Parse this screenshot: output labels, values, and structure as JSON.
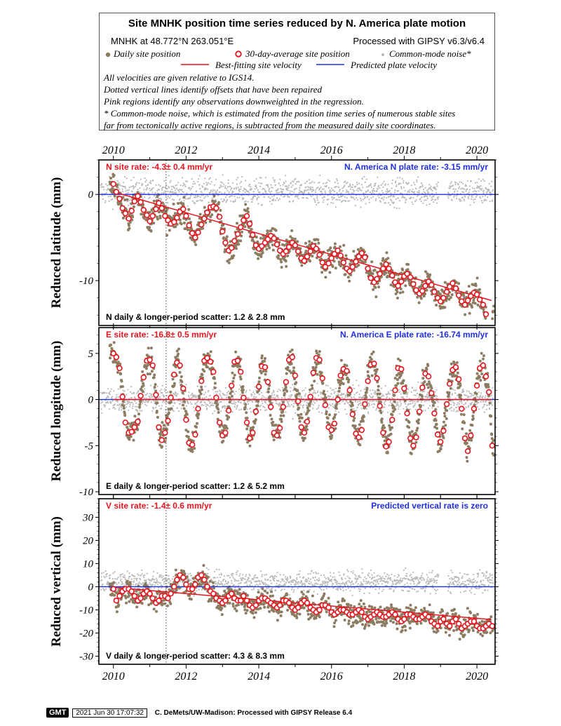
{
  "legend": {
    "title": "Site MNHK position time series reduced by N. America plate motion",
    "site_line": "MNHK at 48.772°N 263.051°E",
    "processed_line": "Processed with GIPSY v6.3/v6.4",
    "daily_label": "Daily site position",
    "avg_label": "30-day-average site position",
    "cm_label": "Common-mode noise*",
    "best_fit_label": "Best-fitting site velocity",
    "pred_label": "Predicted plate velocity",
    "notes": [
      "All velocities are given relative to IGS14.",
      "Dotted vertical lines identify offsets that have been repaired",
      "Pink regions identify any observations downweighted in the regression.",
      "* Common-mode noise, which is estimated from the position time series of numerous stable sites",
      "far from tectonically active regions, is subtracted from the measured daily site coordinates."
    ]
  },
  "footer": {
    "logo": "GMT",
    "timestamp": "2021 Jun 30 17:07:32",
    "credit": "C. DeMets/UW-Madison: Processed with GIPSY Release 6.4"
  },
  "colors": {
    "daily": "#8c7c62",
    "common_mode": "#b9b9b9",
    "average_ring": "#e8141e",
    "best_fit": "#e8141e",
    "predicted": "#1f2fe6",
    "site_rate_text": "#e8141e",
    "plate_rate_text": "#1f2fe6"
  },
  "chart_data": [
    {
      "type": "scatter",
      "ylabel": "Reduced latitude (mm)",
      "site_rate": "N site rate:  -4.3± 0.4 mm/yr",
      "plate_rate": "N. America N plate rate: -3.15 mm/yr",
      "scatter": "N daily & longer-period scatter:   1.2 &   2.8 mm",
      "xlim": [
        2009.6,
        2020.5
      ],
      "ylim": [
        -15.2,
        4.0
      ],
      "xticks": [
        "2010",
        "2012",
        "2014",
        "2016",
        "2018",
        "2020"
      ],
      "yticks": [
        0,
        -10
      ],
      "offset_year": 2011.45,
      "best_fit": {
        "x": [
          2010.0,
          2020.4
        ],
        "y": [
          0.3,
          -12.3
        ]
      },
      "predicted_y": 0,
      "avg_x": [
        2010.0,
        2010.08,
        2010.17,
        2010.25,
        2010.33,
        2010.42,
        2010.5,
        2010.58,
        2010.67,
        2010.75,
        2010.83,
        2010.92,
        2011.0,
        2011.08,
        2011.17,
        2011.25,
        2011.33,
        2011.42,
        2011.5,
        2011.58,
        2011.67,
        2011.75,
        2011.83,
        2011.92,
        2012.0,
        2012.08,
        2012.17,
        2012.25,
        2012.33,
        2012.42,
        2012.5,
        2012.58,
        2012.67,
        2012.75,
        2012.83,
        2012.92,
        2013.0,
        2013.08,
        2013.17,
        2013.25,
        2013.33,
        2013.42,
        2013.5,
        2013.58,
        2013.67,
        2013.75,
        2013.83,
        2013.92,
        2014.0,
        2014.08,
        2014.17,
        2014.25,
        2014.33,
        2014.42,
        2014.5,
        2014.58,
        2014.67,
        2014.75,
        2014.83,
        2014.92,
        2015.0,
        2015.08,
        2015.17,
        2015.25,
        2015.33,
        2015.42,
        2015.5,
        2015.58,
        2015.67,
        2015.75,
        2015.83,
        2015.92,
        2016.0,
        2016.08,
        2016.17,
        2016.25,
        2016.33,
        2016.42,
        2016.5,
        2016.58,
        2016.67,
        2016.75,
        2016.83,
        2016.92,
        2017.0,
        2017.08,
        2017.17,
        2017.25,
        2017.33,
        2017.42,
        2017.5,
        2017.58,
        2017.67,
        2017.75,
        2017.83,
        2017.92,
        2018.0,
        2018.08,
        2018.17,
        2018.25,
        2018.33,
        2018.42,
        2018.5,
        2018.58,
        2018.67,
        2018.75,
        2018.83,
        2018.92,
        2019.0,
        2019.08,
        2019.17,
        2019.25,
        2019.33,
        2019.42,
        2019.5,
        2019.58,
        2019.67,
        2019.75,
        2019.83,
        2019.92,
        2020.0,
        2020.08,
        2020.17,
        2020.25,
        2020.33,
        2020.42
      ],
      "avg_y": [
        1.2,
        0.3,
        -0.5,
        -1.6,
        -2.2,
        -2.8,
        -1.9,
        -0.8,
        -0.2,
        -0.9,
        -1.8,
        -2.4,
        -3.1,
        -2.5,
        -1.7,
        -1.0,
        -1.6,
        -2.5,
        -3.0,
        -3.4,
        -3.2,
        -2.7,
        -2.0,
        -1.7,
        -2.5,
        -3.6,
        -4.5,
        -5.0,
        -4.4,
        -3.5,
        -2.8,
        -2.1,
        -1.5,
        -1.4,
        -1.6,
        -2.6,
        -4.3,
        -5.6,
        -6.5,
        -6.2,
        -5.4,
        -4.6,
        -3.8,
        -3.0,
        -2.5,
        -3.4,
        -4.7,
        -5.9,
        -6.3,
        -6.0,
        -5.6,
        -5.2,
        -4.8,
        -5.1,
        -5.8,
        -6.5,
        -6.9,
        -6.6,
        -6.1,
        -5.6,
        -5.9,
        -6.6,
        -7.4,
        -7.7,
        -7.2,
        -6.6,
        -6.0,
        -6.3,
        -7.0,
        -7.9,
        -8.4,
        -8.0,
        -7.4,
        -6.9,
        -6.5,
        -7.1,
        -7.9,
        -8.6,
        -8.9,
        -8.4,
        -7.8,
        -7.2,
        -6.8,
        -7.3,
        -8.6,
        -9.7,
        -10.2,
        -9.8,
        -9.2,
        -8.6,
        -8.1,
        -8.6,
        -9.4,
        -10.2,
        -10.6,
        -10.1,
        -9.5,
        -9.2,
        -9.6,
        -10.4,
        -11.1,
        -11.5,
        -11.2,
        -10.6,
        -10.1,
        -10.5,
        -11.3,
        -12.0,
        -12.4,
        -12.0,
        -11.3,
        -10.7,
        -10.3,
        -10.9,
        -11.7,
        -12.4,
        -12.8,
        -12.3,
        -11.8,
        -11.4,
        -11.6,
        -12.2,
        -12.8,
        -13.9
      ],
      "daily_amp": 0.9,
      "daily_spread": 1.3,
      "cm_center": 0.3,
      "cm_spread": 1.1
    },
    {
      "type": "scatter",
      "ylabel": "Reduced longitude (mm)",
      "site_rate": "E site rate:  -16.8± 0.5 mm/yr",
      "plate_rate": "N. America E plate rate: -16.74 mm/yr",
      "scatter": "E daily & longer-period scatter:   1.2 &   5.2 mm",
      "xlim": [
        2009.6,
        2020.5
      ],
      "ylim": [
        -10.3,
        7.8
      ],
      "xticks": [
        "2010",
        "2012",
        "2014",
        "2016",
        "2018",
        "2020"
      ],
      "yticks": [
        5,
        0,
        -5,
        -10
      ],
      "offset_year": 2011.45,
      "best_fit": {
        "x": [
          2010.0,
          2020.4
        ],
        "y": [
          0,
          0
        ]
      },
      "predicted_y": 0,
      "avg_x": [
        2010.0,
        2010.08,
        2010.17,
        2010.25,
        2010.33,
        2010.42,
        2010.5,
        2010.58,
        2010.67,
        2010.75,
        2010.83,
        2010.92,
        2011.0,
        2011.08,
        2011.17,
        2011.25,
        2011.33,
        2011.42,
        2011.5,
        2011.58,
        2011.67,
        2011.75,
        2011.83,
        2011.92,
        2012.0,
        2012.08,
        2012.17,
        2012.25,
        2012.33,
        2012.42,
        2012.5,
        2012.58,
        2012.67,
        2012.75,
        2012.83,
        2012.92,
        2013.0,
        2013.08,
        2013.17,
        2013.25,
        2013.33,
        2013.42,
        2013.5,
        2013.58,
        2013.67,
        2013.75,
        2013.83,
        2013.92,
        2014.0,
        2014.08,
        2014.17,
        2014.25,
        2014.33,
        2014.42,
        2014.5,
        2014.58,
        2014.67,
        2014.75,
        2014.83,
        2014.92,
        2015.0,
        2015.08,
        2015.17,
        2015.25,
        2015.33,
        2015.42,
        2015.5,
        2015.58,
        2015.67,
        2015.75,
        2015.83,
        2015.92,
        2016.0,
        2016.08,
        2016.17,
        2016.25,
        2016.33,
        2016.42,
        2016.5,
        2016.58,
        2016.67,
        2016.75,
        2016.83,
        2016.92,
        2017.0,
        2017.08,
        2017.17,
        2017.25,
        2017.33,
        2017.42,
        2017.5,
        2017.58,
        2017.67,
        2017.75,
        2017.83,
        2017.92,
        2018.0,
        2018.08,
        2018.17,
        2018.25,
        2018.33,
        2018.42,
        2018.5,
        2018.58,
        2018.67,
        2018.75,
        2018.83,
        2018.92,
        2019.0,
        2019.08,
        2019.17,
        2019.25,
        2019.33,
        2019.42,
        2019.5,
        2019.58,
        2019.67,
        2019.75,
        2019.83,
        2019.92,
        2020.0,
        2020.08,
        2020.17,
        2020.25,
        2020.33,
        2020.42
      ],
      "avg_y": [
        5.0,
        4.6,
        3.4,
        0.3,
        -2.5,
        -3.6,
        -3.5,
        -3.0,
        -2.4,
        0.4,
        2.4,
        4.2,
        4.3,
        3.7,
        0.5,
        -3.0,
        -4.4,
        -3.6,
        -2.3,
        0.2,
        2.7,
        4.0,
        3.7,
        1.2,
        -2.2,
        -4.7,
        -4.9,
        -3.8,
        -1.0,
        2.0,
        4.2,
        4.5,
        4.1,
        3.0,
        0.2,
        -2.5,
        -3.9,
        -3.6,
        -1.2,
        1.5,
        4.1,
        4.2,
        3.0,
        0.2,
        -2.5,
        -4.2,
        -3.6,
        -1.3,
        1.4,
        3.6,
        3.5,
        1.9,
        -0.8,
        -3.6,
        -3.9,
        -3.1,
        -0.8,
        1.9,
        4.3,
        4.6,
        2.6,
        -0.2,
        -3.0,
        -3.6,
        -2.4,
        0.3,
        2.9,
        4.5,
        4.3,
        2.3,
        -0.6,
        -3.0,
        -3.3,
        -2.6,
        0.0,
        2.6,
        3.3,
        3.1,
        1.0,
        -1.6,
        -3.7,
        -4.1,
        -3.3,
        -0.5,
        2.0,
        3.8,
        3.9,
        2.3,
        -0.7,
        -3.6,
        -5.1,
        -4.6,
        -2.2,
        1.0,
        3.4,
        3.3,
        1.2,
        -1.5,
        -4.2,
        -5.0,
        -4.1,
        -1.3,
        1.3,
        2.8,
        2.5,
        0.7,
        -1.5,
        -3.8,
        -4.6,
        -3.4,
        -0.5,
        1.7,
        3.2,
        3.5,
        2.2,
        -1.0,
        -4.2,
        -5.6,
        -3.9,
        -1.0,
        1.5,
        3.4,
        3.7,
        2.5,
        0.8,
        -5.0
      ],
      "daily_amp": 0.0,
      "daily_spread": 1.3,
      "cm_center": 0.0,
      "cm_spread": 1.0
    },
    {
      "type": "scatter",
      "ylabel": "Reduced vertical (mm)",
      "site_rate": "V site rate:  -1.4± 0.6 mm/yr",
      "plate_rate": "Predicted vertical rate is zero",
      "scatter": "V daily & longer-period scatter:   4.3 &   8.3 mm",
      "xlim": [
        2009.6,
        2020.5
      ],
      "ylim": [
        -33.5,
        38.0
      ],
      "xticks": [
        "2010",
        "2012",
        "2014",
        "2016",
        "2018",
        "2020"
      ],
      "yticks": [
        30,
        20,
        10,
        0,
        -10,
        -20,
        -30
      ],
      "offset_year": 2011.45,
      "best_fit": {
        "x": [
          2010.0,
          2020.4
        ],
        "y": [
          -0.3,
          -14.2
        ]
      },
      "predicted_y": 0,
      "avg_x": [
        2010.0,
        2010.08,
        2010.17,
        2010.25,
        2010.33,
        2010.42,
        2010.5,
        2010.58,
        2010.67,
        2010.75,
        2010.83,
        2010.92,
        2011.0,
        2011.08,
        2011.17,
        2011.25,
        2011.33,
        2011.42,
        2011.5,
        2011.58,
        2011.67,
        2011.75,
        2011.83,
        2011.92,
        2012.0,
        2012.08,
        2012.17,
        2012.25,
        2012.33,
        2012.42,
        2012.5,
        2012.58,
        2012.67,
        2012.75,
        2012.83,
        2012.92,
        2013.0,
        2013.08,
        2013.17,
        2013.25,
        2013.33,
        2013.42,
        2013.5,
        2013.58,
        2013.67,
        2013.75,
        2013.83,
        2013.92,
        2014.0,
        2014.08,
        2014.17,
        2014.25,
        2014.33,
        2014.42,
        2014.5,
        2014.58,
        2014.67,
        2014.75,
        2014.83,
        2014.92,
        2015.0,
        2015.08,
        2015.17,
        2015.25,
        2015.33,
        2015.42,
        2015.5,
        2015.58,
        2015.67,
        2015.75,
        2015.83,
        2015.92,
        2016.0,
        2016.08,
        2016.17,
        2016.25,
        2016.33,
        2016.42,
        2016.5,
        2016.58,
        2016.67,
        2016.75,
        2016.83,
        2016.92,
        2017.0,
        2017.08,
        2017.17,
        2017.25,
        2017.33,
        2017.42,
        2017.5,
        2017.58,
        2017.67,
        2017.75,
        2017.83,
        2017.92,
        2018.0,
        2018.08,
        2018.17,
        2018.25,
        2018.33,
        2018.42,
        2018.5,
        2018.58,
        2018.67,
        2018.75,
        2018.83,
        2018.92,
        2019.0,
        2019.08,
        2019.17,
        2019.25,
        2019.33,
        2019.42,
        2019.5,
        2019.58,
        2019.67,
        2019.75,
        2019.83,
        2019.92,
        2020.0,
        2020.08,
        2020.17,
        2020.25,
        2020.33,
        2020.42
      ],
      "avg_y": [
        -1.0,
        -6.0,
        -4.0,
        -2.0,
        -1.0,
        -1.0,
        -2.0,
        -4.0,
        -6.0,
        -5.0,
        -3.0,
        -2.0,
        -3.0,
        -5.0,
        -7.0,
        -6.0,
        -4.0,
        -4.0,
        -5.0,
        -3.0,
        0.0,
        3.0,
        5.0,
        4.0,
        1.0,
        -1.0,
        -1.0,
        1.0,
        4.0,
        5.0,
        3.0,
        0.0,
        -2.0,
        -3.0,
        -5.0,
        -6.0,
        -7.0,
        -6.0,
        -4.0,
        -3.0,
        -5.0,
        -6.0,
        -6.0,
        -4.0,
        -6.0,
        -8.0,
        -9.0,
        -8.0,
        -6.0,
        -5.0,
        -5.0,
        -6.0,
        -7.0,
        -8.0,
        -9.0,
        -8.0,
        -6.0,
        -6.0,
        -7.0,
        -9.0,
        -10.0,
        -9.0,
        -7.0,
        -6.0,
        -7.0,
        -9.0,
        -10.0,
        -11.0,
        -10.0,
        -8.0,
        -8.0,
        -9.0,
        -11.0,
        -12.0,
        -11.0,
        -10.0,
        -10.0,
        -11.0,
        -12.0,
        -12.0,
        -11.0,
        -10.0,
        -11.0,
        -13.0,
        -14.0,
        -13.0,
        -12.0,
        -11.0,
        -12.0,
        -13.0,
        -13.0,
        -12.0,
        -11.0,
        -12.0,
        -14.0,
        -15.0,
        -14.0,
        -12.0,
        -12.0,
        -13.0,
        -14.0,
        -14.0,
        -13.0,
        -12.0,
        -13.0,
        -15.0,
        -16.0,
        -17.0,
        -15.0,
        -14.0,
        -16.0,
        -17.0,
        -15.0,
        -14.0,
        -16.0,
        -18.0,
        -17.0,
        -16.0,
        -15.0,
        -15.0,
        -17.0,
        -18.0,
        -18.0,
        -17.0,
        -16.0,
        -17.0
      ],
      "daily_amp": 0.0,
      "daily_spread": 4.3,
      "cm_center": 2.0,
      "cm_spread": 3.2
    }
  ]
}
